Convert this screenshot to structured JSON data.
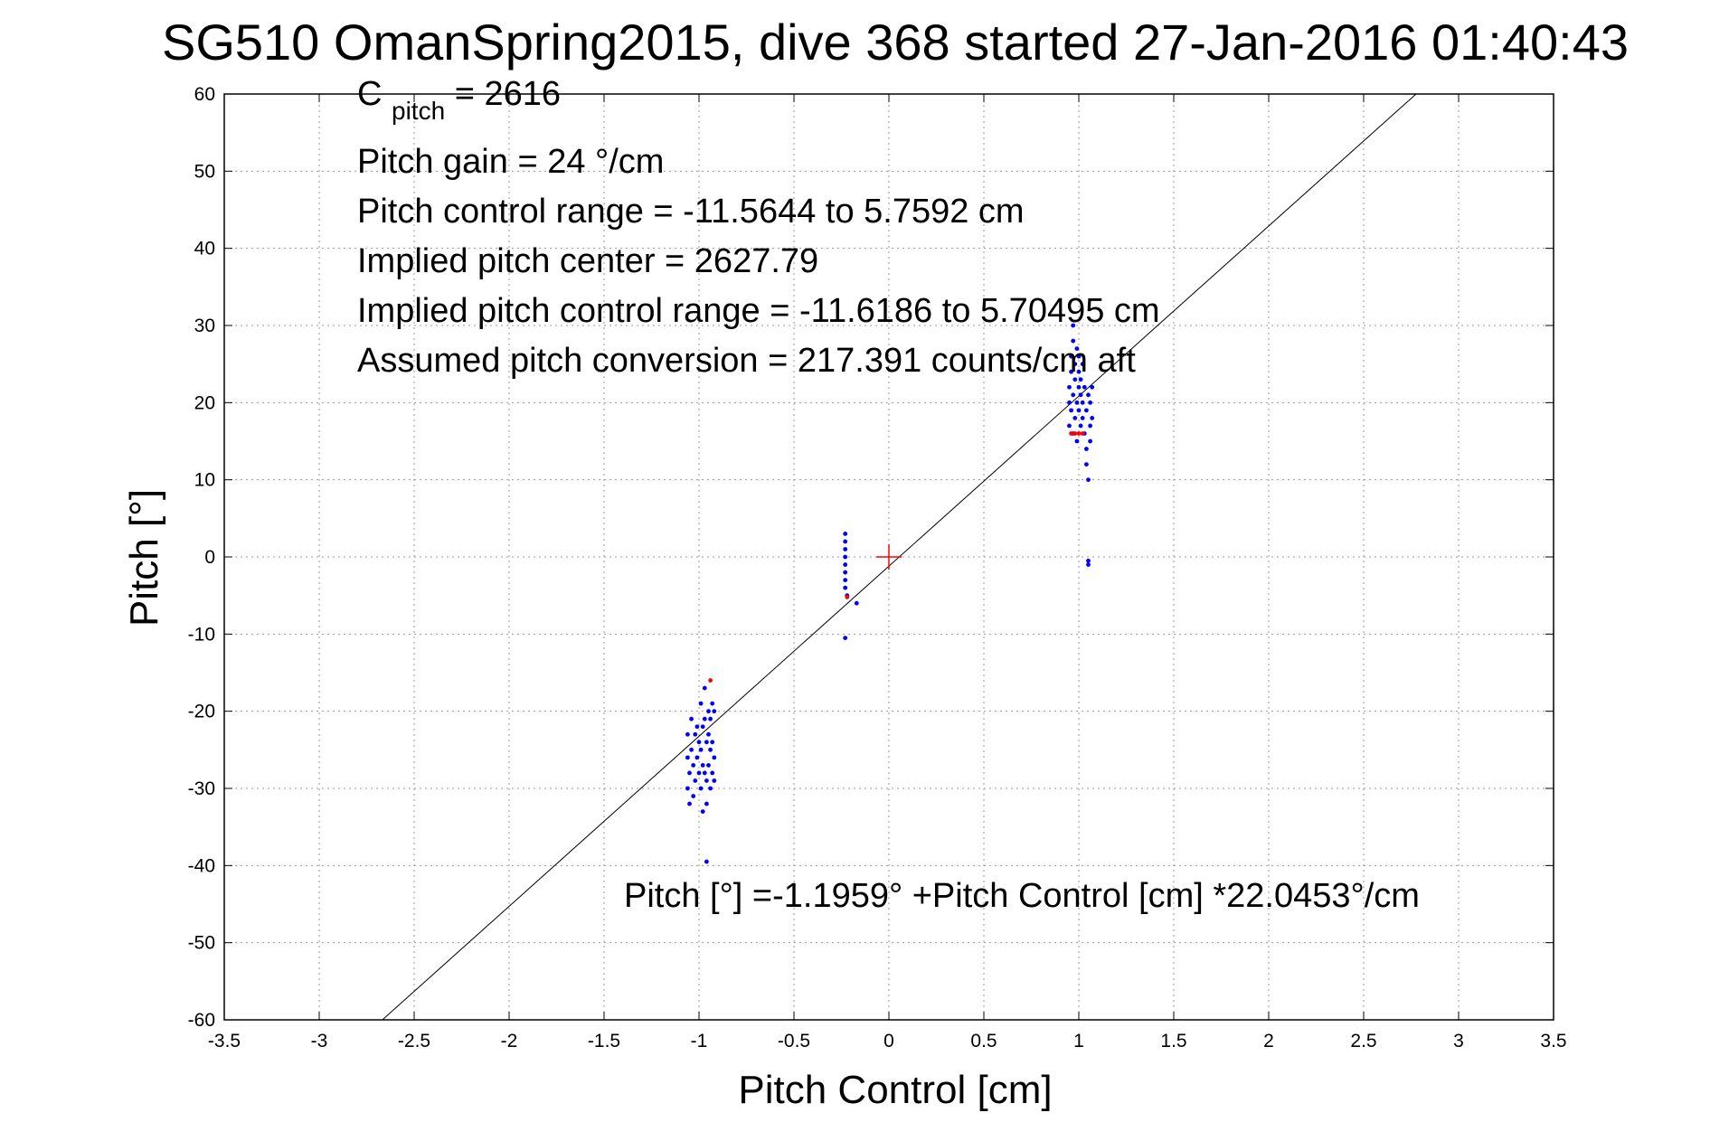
{
  "chart_data": {
    "type": "scatter",
    "title": "SG510 OmanSpring2015, dive 368 started 27-Jan-2016 01:40:43",
    "xlabel": "Pitch Control [cm]",
    "ylabel": "Pitch [°]",
    "xlim": [
      -3.5,
      3.5
    ],
    "ylim": [
      -60,
      60
    ],
    "xticks": [
      "-3.5",
      "-3",
      "-2.5",
      "-2",
      "-1.5",
      "-1",
      "-0.5",
      "0",
      "0.5",
      "1",
      "1.5",
      "2",
      "2.5",
      "3",
      "3.5"
    ],
    "yticks": [
      "60",
      "50",
      "40",
      "30",
      "20",
      "10",
      "0",
      "-10",
      "-20",
      "-30",
      "-40",
      "-50",
      "-60"
    ],
    "grid": true,
    "annotations": {
      "c_pitch_main": "C",
      "c_pitch_sub": "pitch",
      "c_pitch_value": " = 2616",
      "pitch_gain": "Pitch gain = 24 °/cm",
      "control_range": "Pitch control range = -11.5644 to 5.7592 cm",
      "implied_center": "Implied pitch center = 2627.79",
      "implied_range": "Implied pitch control range = -11.6186 to 5.70495 cm",
      "conversion": "Assumed pitch conversion = 217.391 counts/cm aft",
      "fit_equation": "Pitch [°] =-1.1959° +Pitch Control [cm] *22.0453°/cm"
    },
    "fit_line": {
      "intercept": -1.1959,
      "slope": 22.0453,
      "color": "#000000"
    },
    "center_marker": {
      "x": 0,
      "y": 0,
      "color": "#ff0000"
    },
    "series": [
      {
        "color": "#0000ff",
        "points": [
          [
            -1.06,
            -23
          ],
          [
            -1.06,
            -26
          ],
          [
            -1.06,
            -30
          ],
          [
            -1.05,
            -28
          ],
          [
            -1.05,
            -32
          ],
          [
            -1.04,
            -21
          ],
          [
            -1.04,
            -25
          ],
          [
            -1.03,
            -27
          ],
          [
            -1.03,
            -31
          ],
          [
            -1.02,
            -23
          ],
          [
            -1.02,
            -29
          ],
          [
            -1.01,
            -22
          ],
          [
            -1.01,
            -26
          ],
          [
            -1.0,
            -24
          ],
          [
            -1.0,
            -28
          ],
          [
            -0.99,
            -19
          ],
          [
            -0.99,
            -25
          ],
          [
            -0.99,
            -30
          ],
          [
            -0.98,
            -27
          ],
          [
            -0.98,
            -22
          ],
          [
            -0.98,
            -33
          ],
          [
            -0.97,
            -17
          ],
          [
            -0.97,
            -21
          ],
          [
            -0.97,
            -28
          ],
          [
            -0.96,
            -24
          ],
          [
            -0.96,
            -29
          ],
          [
            -0.96,
            -32
          ],
          [
            -0.95,
            -20
          ],
          [
            -0.95,
            -23
          ],
          [
            -0.95,
            -27
          ],
          [
            -0.94,
            -21
          ],
          [
            -0.94,
            -25
          ],
          [
            -0.94,
            -30
          ],
          [
            -0.93,
            -19
          ],
          [
            -0.93,
            -24
          ],
          [
            -0.93,
            -28
          ],
          [
            -0.92,
            -20
          ],
          [
            -0.92,
            -26
          ],
          [
            -0.92,
            -29
          ],
          [
            -0.96,
            -39.5
          ],
          [
            -0.23,
            3
          ],
          [
            -0.23,
            2
          ],
          [
            -0.23,
            1
          ],
          [
            -0.23,
            0
          ],
          [
            -0.23,
            -1
          ],
          [
            -0.23,
            -2
          ],
          [
            -0.23,
            -3
          ],
          [
            -0.23,
            -4
          ],
          [
            -0.22,
            -5
          ],
          [
            -0.23,
            -10.5
          ],
          [
            -0.17,
            -6
          ],
          [
            0.95,
            17
          ],
          [
            0.95,
            20
          ],
          [
            0.95,
            22
          ],
          [
            0.96,
            24
          ],
          [
            0.96,
            19
          ],
          [
            0.96,
            26
          ],
          [
            0.97,
            16
          ],
          [
            0.97,
            21
          ],
          [
            0.97,
            28
          ],
          [
            0.97,
            30
          ],
          [
            0.98,
            18
          ],
          [
            0.98,
            23
          ],
          [
            0.98,
            25
          ],
          [
            0.99,
            20
          ],
          [
            0.99,
            27
          ],
          [
            0.99,
            15
          ],
          [
            1.0,
            19
          ],
          [
            1.0,
            22
          ],
          [
            1.0,
            24
          ],
          [
            1.0,
            26
          ],
          [
            1.01,
            17
          ],
          [
            1.01,
            21
          ],
          [
            1.01,
            23
          ],
          [
            1.02,
            18
          ],
          [
            1.02,
            25
          ],
          [
            1.02,
            20
          ],
          [
            1.03,
            22
          ],
          [
            1.03,
            16
          ],
          [
            1.04,
            19
          ],
          [
            1.04,
            12
          ],
          [
            1.04,
            14
          ],
          [
            1.05,
            10
          ],
          [
            1.05,
            21
          ],
          [
            1.06,
            17
          ],
          [
            1.06,
            15
          ],
          [
            1.06,
            20
          ],
          [
            1.07,
            18
          ],
          [
            1.07,
            22
          ],
          [
            1.05,
            -0.5
          ],
          [
            1.05,
            -1
          ]
        ]
      },
      {
        "color": "#ff0000",
        "points": [
          [
            -0.94,
            -16
          ],
          [
            -0.22,
            -5.2
          ],
          [
            0.96,
            16
          ],
          [
            0.98,
            16
          ],
          [
            1.0,
            16
          ],
          [
            1.02,
            16
          ]
        ]
      }
    ]
  }
}
